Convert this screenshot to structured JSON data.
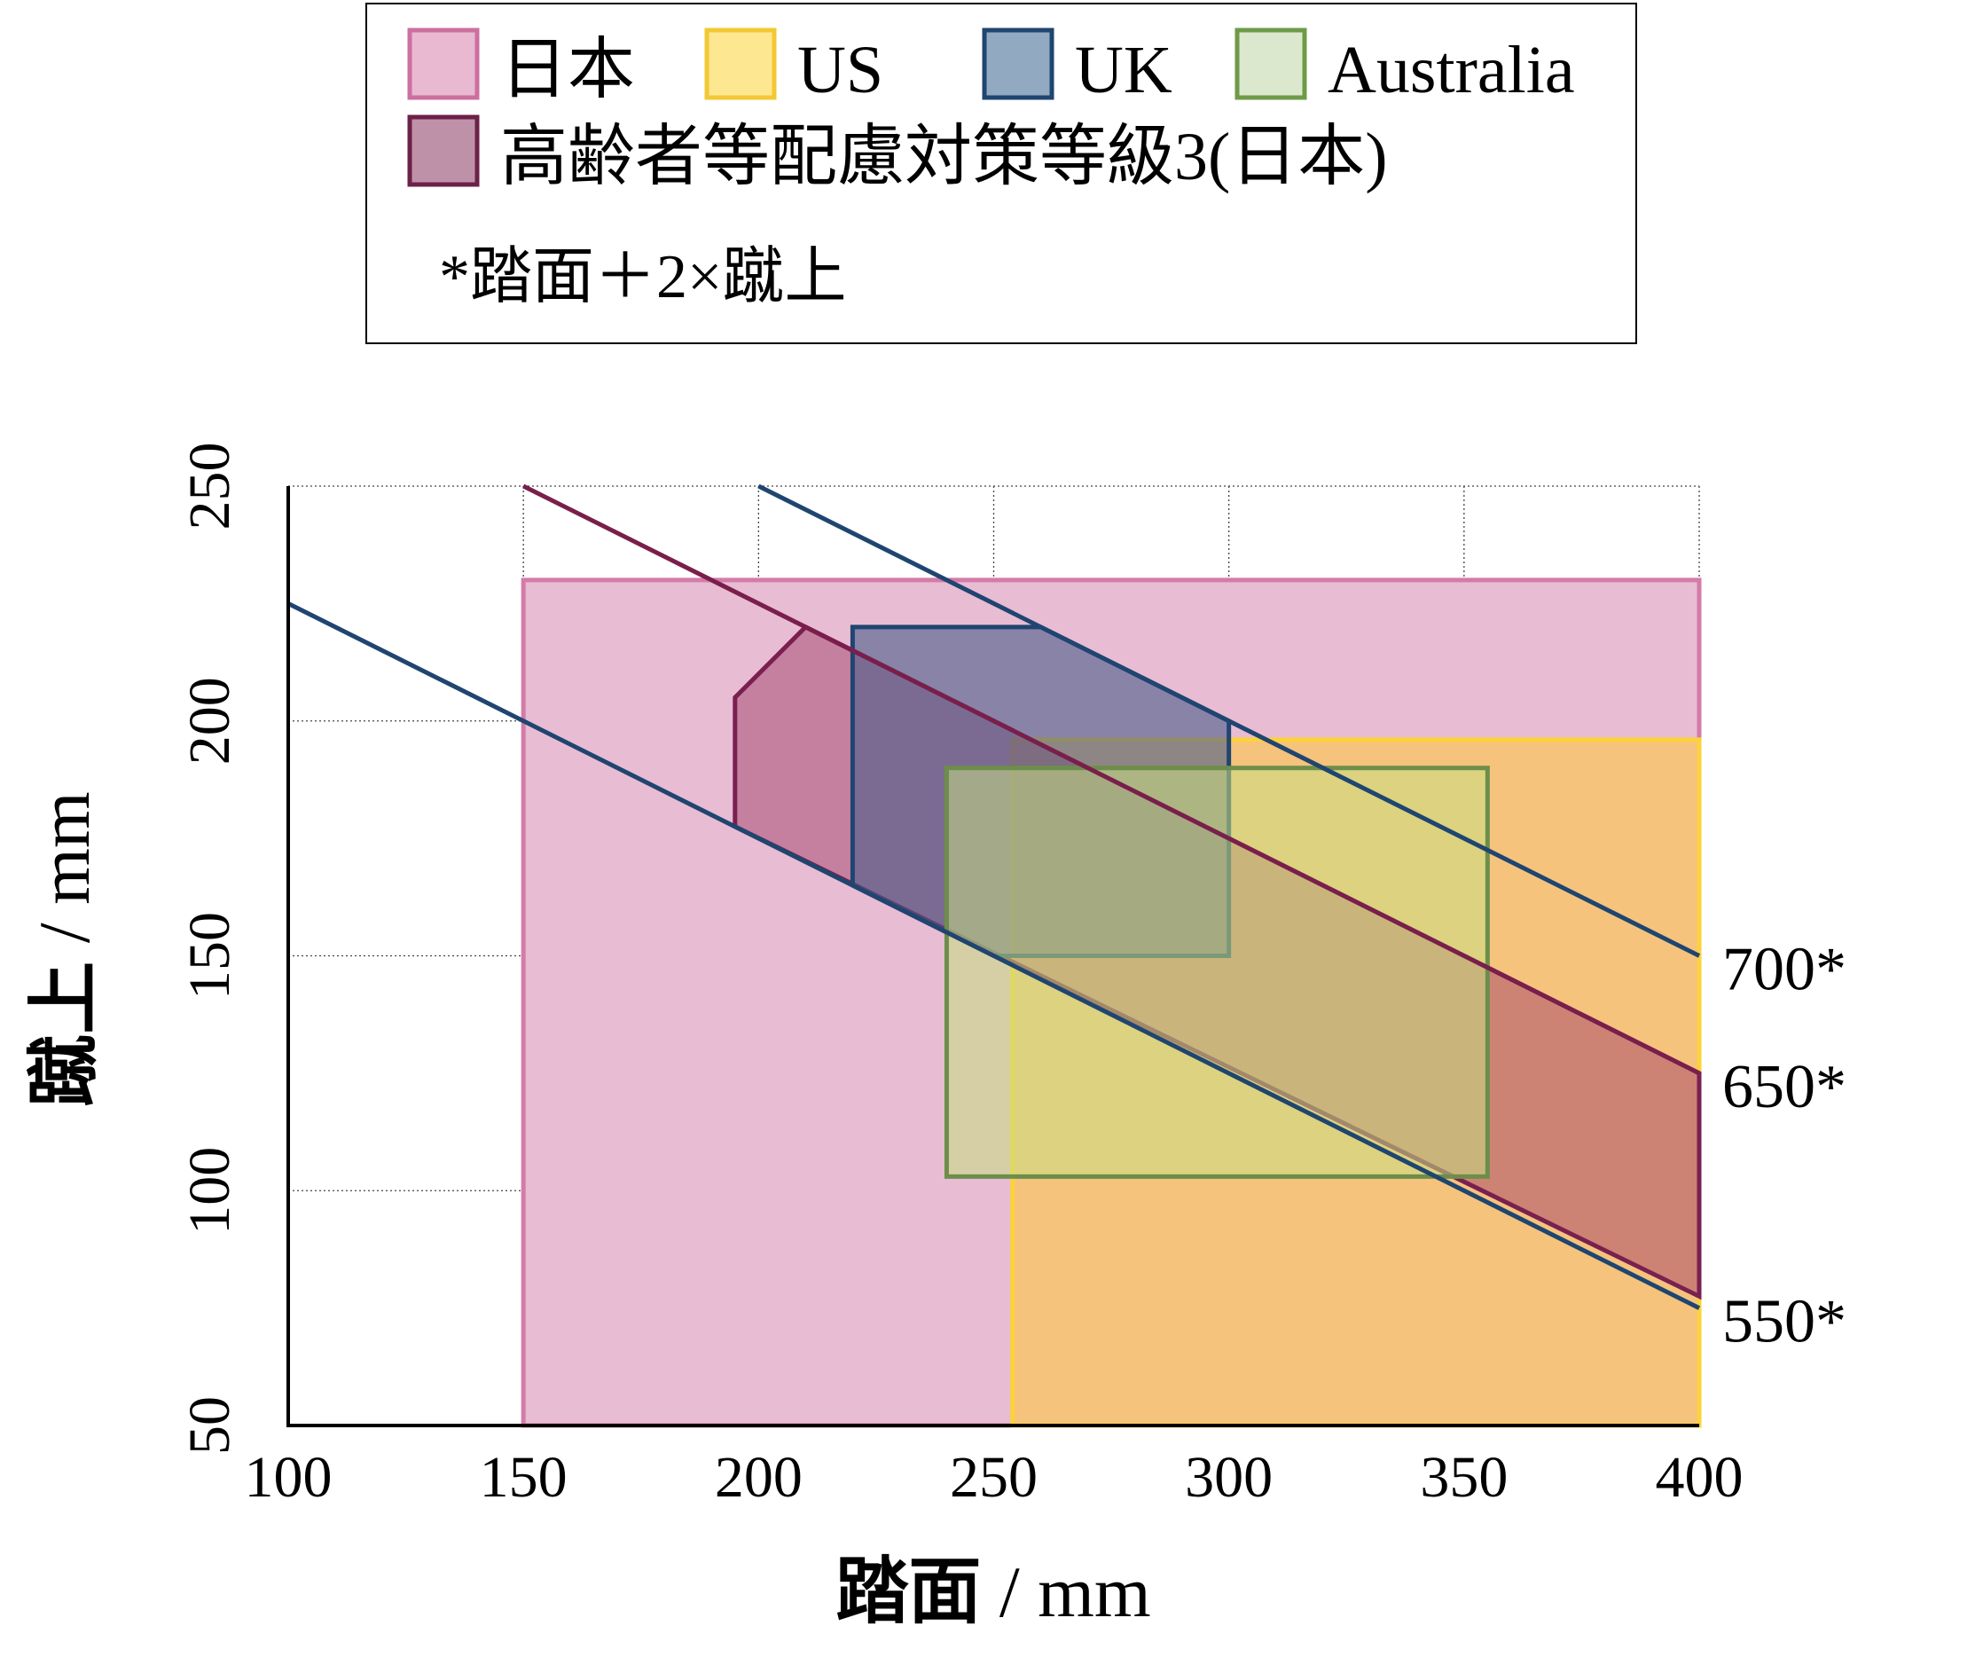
{
  "chart_data": {
    "type": "area",
    "xlabel": {
      "bold": "踏面",
      "unit": " / mm"
    },
    "ylabel": {
      "bold": "蹴上",
      "unit": " / mm"
    },
    "xlim": [
      100,
      400
    ],
    "ylim": [
      50,
      250
    ],
    "xticks": [
      "100",
      "150",
      "200",
      "250",
      "300",
      "350",
      "400"
    ],
    "yticks": [
      "50",
      "100",
      "150",
      "200",
      "250"
    ],
    "grid": true,
    "legend": {
      "placement": "top",
      "items": [
        {
          "label": "日本",
          "fill": "#e8b9d0",
          "stroke": "#cc6f9f"
        },
        {
          "label": "US",
          "fill": "#fde891",
          "stroke": "#f2c833"
        },
        {
          "label": "UK",
          "fill": "#91a9c1",
          "stroke": "#1f4570"
        },
        {
          "label": "Australia",
          "fill": "#dce8cd",
          "stroke": "#6e9a48"
        },
        {
          "label": "高齢者等配慮対策等級3(日本)",
          "fill": "#bf91a8",
          "stroke": "#6b2148"
        }
      ],
      "note": "*踏面＋2×蹴上"
    },
    "series": [
      {
        "name": "日本",
        "shape": "region",
        "x": [
          150,
          400,
          400,
          150
        ],
        "y": [
          50,
          50,
          230,
          230
        ],
        "fill": "#e8bcd3",
        "stroke": "#d47ba9"
      },
      {
        "name": "US",
        "shape": "region",
        "x": [
          254,
          400,
          400,
          254
        ],
        "y": [
          50,
          50,
          196,
          196
        ],
        "fill": "#f6c470",
        "stroke": "#fcd23b",
        "opacity": 0.88
      },
      {
        "name": "高齢者等配慮対策等級3(日本)",
        "shape": "region",
        "x": [
          195,
          210,
          400,
          400,
          195
        ],
        "y": [
          205,
          220,
          125,
          77.5,
          177.5
        ],
        "fill": "#a4446b",
        "stroke": "#7a2050",
        "opacity": 0.5
      },
      {
        "name": "UK",
        "shape": "region",
        "x": [
          220,
          260,
          300,
          300,
          250,
          220
        ],
        "y": [
          220,
          220,
          200,
          150,
          150,
          165
        ],
        "fill": "#4a5d8a",
        "stroke": "#1f4570",
        "opacity": 0.6
      },
      {
        "name": "Australia",
        "shape": "region",
        "x": [
          240,
          355,
          355,
          240
        ],
        "y": [
          103,
          103,
          190,
          190
        ],
        "fill": "#c7de82",
        "stroke": "#6c8e4a",
        "opacity": 0.55
      }
    ],
    "lines": [
      {
        "label": "550*",
        "x": [
          100,
          400
        ],
        "y": [
          225,
          75
        ],
        "stroke": "#1f4570"
      },
      {
        "label": "650*",
        "x": [
          150,
          400
        ],
        "y": [
          250,
          125
        ],
        "stroke": "#7a1e4c"
      },
      {
        "label": "700*",
        "x": [
          200,
          400
        ],
        "y": [
          250,
          150
        ],
        "stroke": "#1f4570"
      }
    ]
  }
}
